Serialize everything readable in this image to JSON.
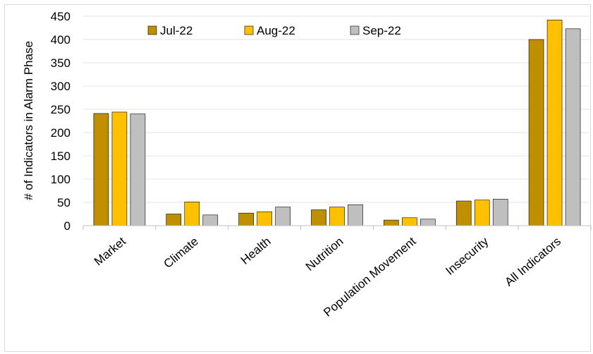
{
  "chart_data": {
    "type": "bar",
    "title": "",
    "xlabel": "",
    "ylabel": "# of Indicators in Alarm Phase",
    "ylim": [
      0,
      450
    ],
    "yticks": [
      0,
      50,
      100,
      150,
      200,
      250,
      300,
      350,
      400,
      450
    ],
    "ytick_labels": [
      "0",
      "50",
      "100",
      "150",
      "200",
      "250",
      "300",
      "350",
      "400",
      "450"
    ],
    "grid": true,
    "legend_position": "top-left",
    "categories": [
      "Market",
      "Climate",
      "Health",
      "Nutrition",
      "Population Movement",
      "Insecurity",
      "All Indicators"
    ],
    "series": [
      {
        "name": "Jul-22",
        "color": "#bf8f00",
        "values": [
          241,
          25,
          27,
          34,
          12,
          53,
          400
        ]
      },
      {
        "name": "Aug-22",
        "color": "#ffc000",
        "values": [
          244,
          51,
          30,
          40,
          17,
          55,
          442
        ]
      },
      {
        "name": "Sep-22",
        "color": "#bfbfbf",
        "values": [
          240,
          23,
          40,
          45,
          14,
          57,
          423
        ]
      }
    ]
  }
}
